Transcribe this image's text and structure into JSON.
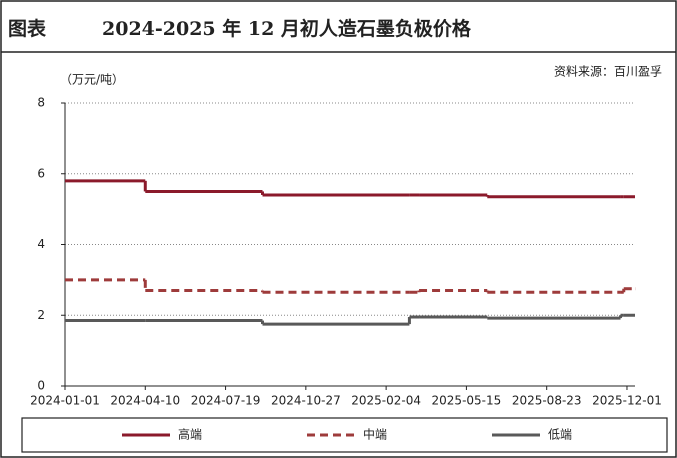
{
  "chart_data": {
    "type": "step-line",
    "label": "图表",
    "title": "2024-2025 年 12 月初人造石墨负极价格",
    "source": "资料来源：百川盈孚",
    "y_label": "（万元/吨）",
    "x": [
      "2024-01-01",
      "2024-04-10",
      "2024-09-03",
      "2025-03-05",
      "2025-03-17",
      "2025-06-10",
      "2025-11-23",
      "2025-11-27",
      "2025-12-11"
    ],
    "xlim": [
      "2024-01-01",
      "2025-12-11"
    ],
    "xticks": [
      "2024-01-01",
      "2024-04-10",
      "2024-07-19",
      "2024-10-27",
      "2025-02-04",
      "2025-05-15",
      "2025-08-23",
      "2025-12-01"
    ],
    "ylim": [
      0,
      8
    ],
    "yticks": [
      0,
      2,
      4,
      6,
      8
    ],
    "grid": true,
    "series": [
      {
        "name": "高端",
        "color": "#8b1a2b",
        "linestyle": "solid",
        "values": [
          5.8,
          5.5,
          5.4,
          5.4,
          5.4,
          5.35,
          5.35,
          5.35,
          5.35
        ]
      },
      {
        "name": "中端",
        "color": "#9e3b3b",
        "linestyle": "dashed",
        "values": [
          3.0,
          2.7,
          2.65,
          2.65,
          2.7,
          2.65,
          2.65,
          2.75,
          2.75
        ]
      },
      {
        "name": "低端",
        "color": "#595959",
        "linestyle": "solid",
        "values": [
          1.85,
          1.85,
          1.75,
          1.95,
          1.95,
          1.92,
          2.0,
          2.0,
          2.0
        ]
      }
    ]
  }
}
